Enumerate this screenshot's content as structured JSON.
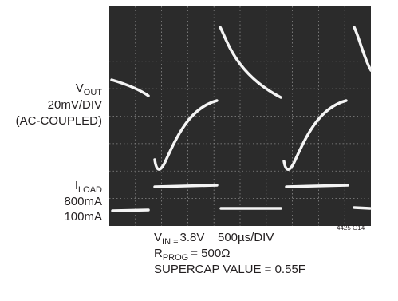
{
  "labels": {
    "vout": {
      "symbol": "V",
      "sub": "OUT"
    },
    "vout_scale": "20mV/DIV",
    "coupling": "(AC-COUPLED)",
    "iload": {
      "symbol": "I",
      "sub": "LOAD"
    },
    "high": "800mA",
    "low": "100mA"
  },
  "conditions": {
    "vin": {
      "symbol": "V",
      "sub": "IN =",
      "value": "3.8V"
    },
    "timebase": "500µs/DIV",
    "rprog": {
      "symbol": "R",
      "sub": "PROG",
      "value": "= 500Ω"
    },
    "supercap": "SUPERCAP VALUE = 0.55F"
  },
  "figure_id": "4425 G14"
}
